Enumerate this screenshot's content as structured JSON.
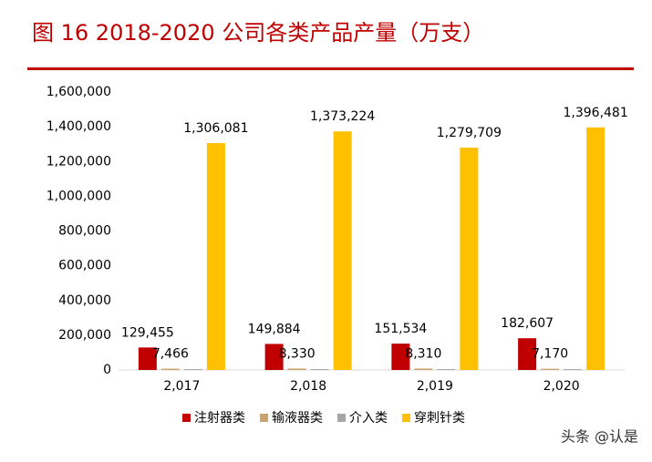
{
  "chart_data": {
    "type": "bar",
    "title": "图 16 2018-2020 公司各类产品产量（万支）",
    "categories": [
      "2,017",
      "2,018",
      "2,019",
      "2,020"
    ],
    "series": [
      {
        "name": "注射器类",
        "color": "#c00000",
        "values": [
          129455,
          149884,
          151534,
          182607
        ],
        "value_labels": [
          "129,455",
          "149,884",
          "151,534",
          "182,607"
        ]
      },
      {
        "name": "输液器类",
        "color": "#c9a46e",
        "values": [
          7466,
          8330,
          8310,
          7170
        ],
        "value_labels": [
          "7,466",
          "8,330",
          "8,310",
          "7,170"
        ]
      },
      {
        "name": "介入类",
        "color": "#a6a6a6",
        "values": [
          5000,
          5000,
          5000,
          5000
        ]
      },
      {
        "name": "穿刺针类",
        "color": "#ffc000",
        "values": [
          1306081,
          1373224,
          1279709,
          1396481
        ],
        "value_labels": [
          "1,306,081",
          "1,373,224",
          "1,279,709",
          "1,396,481"
        ]
      }
    ],
    "ylim": [
      0,
      1600000
    ],
    "yticks": [
      0,
      {
        "value": 200000,
        "label": "200,000"
      },
      {
        "value": 400000,
        "label": "400,000"
      },
      {
        "value": 600000,
        "label": "600,000"
      },
      {
        "value": 800000,
        "label": "800,000"
      },
      {
        "value": 1000000,
        "label": "1,000,000"
      },
      {
        "value": 1200000,
        "label": "1,200,000"
      },
      {
        "value": 1400000,
        "label": "1,400,000"
      },
      {
        "value": 1600000,
        "label": "1,600,000"
      }
    ],
    "legend": "bottom",
    "watermark": "头条 @认是"
  }
}
